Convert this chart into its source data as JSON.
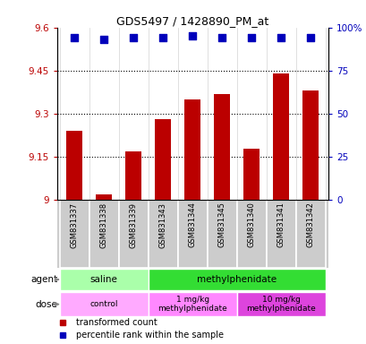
{
  "title": "GDS5497 / 1428890_PM_at",
  "samples": [
    "GSM831337",
    "GSM831338",
    "GSM831339",
    "GSM831343",
    "GSM831344",
    "GSM831345",
    "GSM831340",
    "GSM831341",
    "GSM831342"
  ],
  "bar_values": [
    9.24,
    9.02,
    9.17,
    9.28,
    9.35,
    9.37,
    9.18,
    9.44,
    9.38
  ],
  "percentile_values": [
    94,
    93,
    94,
    94,
    95,
    94,
    94,
    94,
    94
  ],
  "bar_color": "#bb0000",
  "dot_color": "#0000bb",
  "ylim": [
    9.0,
    9.6
  ],
  "y_ticks": [
    9.0,
    9.15,
    9.3,
    9.45,
    9.6
  ],
  "y_tick_labels": [
    "9",
    "9.15",
    "9.3",
    "9.45",
    "9.6"
  ],
  "right_yticks": [
    0,
    25,
    50,
    75,
    100
  ],
  "right_ytick_labels": [
    "0",
    "25",
    "50",
    "75",
    "100%"
  ],
  "hlines": [
    9.15,
    9.3,
    9.45
  ],
  "agent_groups": [
    {
      "text": "saline",
      "start": 0,
      "end": 3,
      "color": "#aaffaa"
    },
    {
      "text": "methylphenidate",
      "start": 3,
      "end": 9,
      "color": "#33dd33"
    }
  ],
  "dose_groups": [
    {
      "text": "control",
      "start": 0,
      "end": 3,
      "color": "#ffaaff"
    },
    {
      "text": "1 mg/kg\nmethylphenidate",
      "start": 3,
      "end": 6,
      "color": "#ff88ff"
    },
    {
      "text": "10 mg/kg\nmethylphenidate",
      "start": 6,
      "end": 9,
      "color": "#dd44dd"
    }
  ],
  "legend_items": [
    {
      "label": "transformed count",
      "color": "#bb0000"
    },
    {
      "label": "percentile rank within the sample",
      "color": "#0000bb"
    }
  ],
  "bar_width": 0.55,
  "dot_size": 40,
  "sample_box_color": "#cccccc",
  "plot_bg_color": "#ffffff",
  "fig_bg_color": "#ffffff"
}
